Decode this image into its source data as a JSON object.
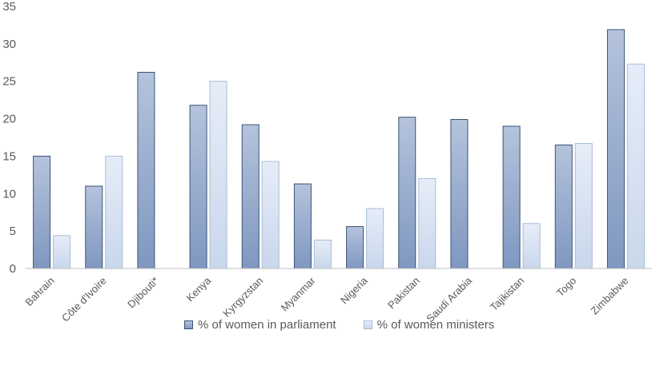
{
  "chart_data": {
    "type": "bar",
    "categories": [
      "Bahrain",
      "Côte d'Ivoire",
      "Djibouti*",
      "Kenya",
      "Kyrgyzstan",
      "Myanmar",
      "Nigeria",
      "Pakistan",
      "Saudi Arabia",
      "Tajikistan",
      "Togo",
      "Zimbabwe"
    ],
    "series": [
      {
        "name": "% of women in parliament",
        "values": [
          15.0,
          11.0,
          26.2,
          21.8,
          19.2,
          11.3,
          5.6,
          20.2,
          19.9,
          19.0,
          16.5,
          31.9
        ]
      },
      {
        "name": "% of women ministers",
        "values": [
          4.4,
          15.0,
          null,
          25.0,
          14.3,
          3.8,
          8.0,
          12.0,
          null,
          6.0,
          16.7,
          27.3
        ]
      }
    ],
    "ylim": [
      0,
      35
    ],
    "yticks": [
      "0",
      "5",
      "10",
      "15",
      "20",
      "25",
      "30",
      "35"
    ],
    "grid": false,
    "legend_position": "bottom",
    "colors": {
      "parliament_top": "#b5c3dc",
      "parliament_bottom": "#7f97c0",
      "parliament_edge": "#3a5478",
      "ministers_top": "#e6edf8",
      "ministers_bottom": "#c9d7ec",
      "ministers_edge": "#a9bdd8",
      "axis": "#bfbfbf",
      "text": "#595959"
    }
  }
}
